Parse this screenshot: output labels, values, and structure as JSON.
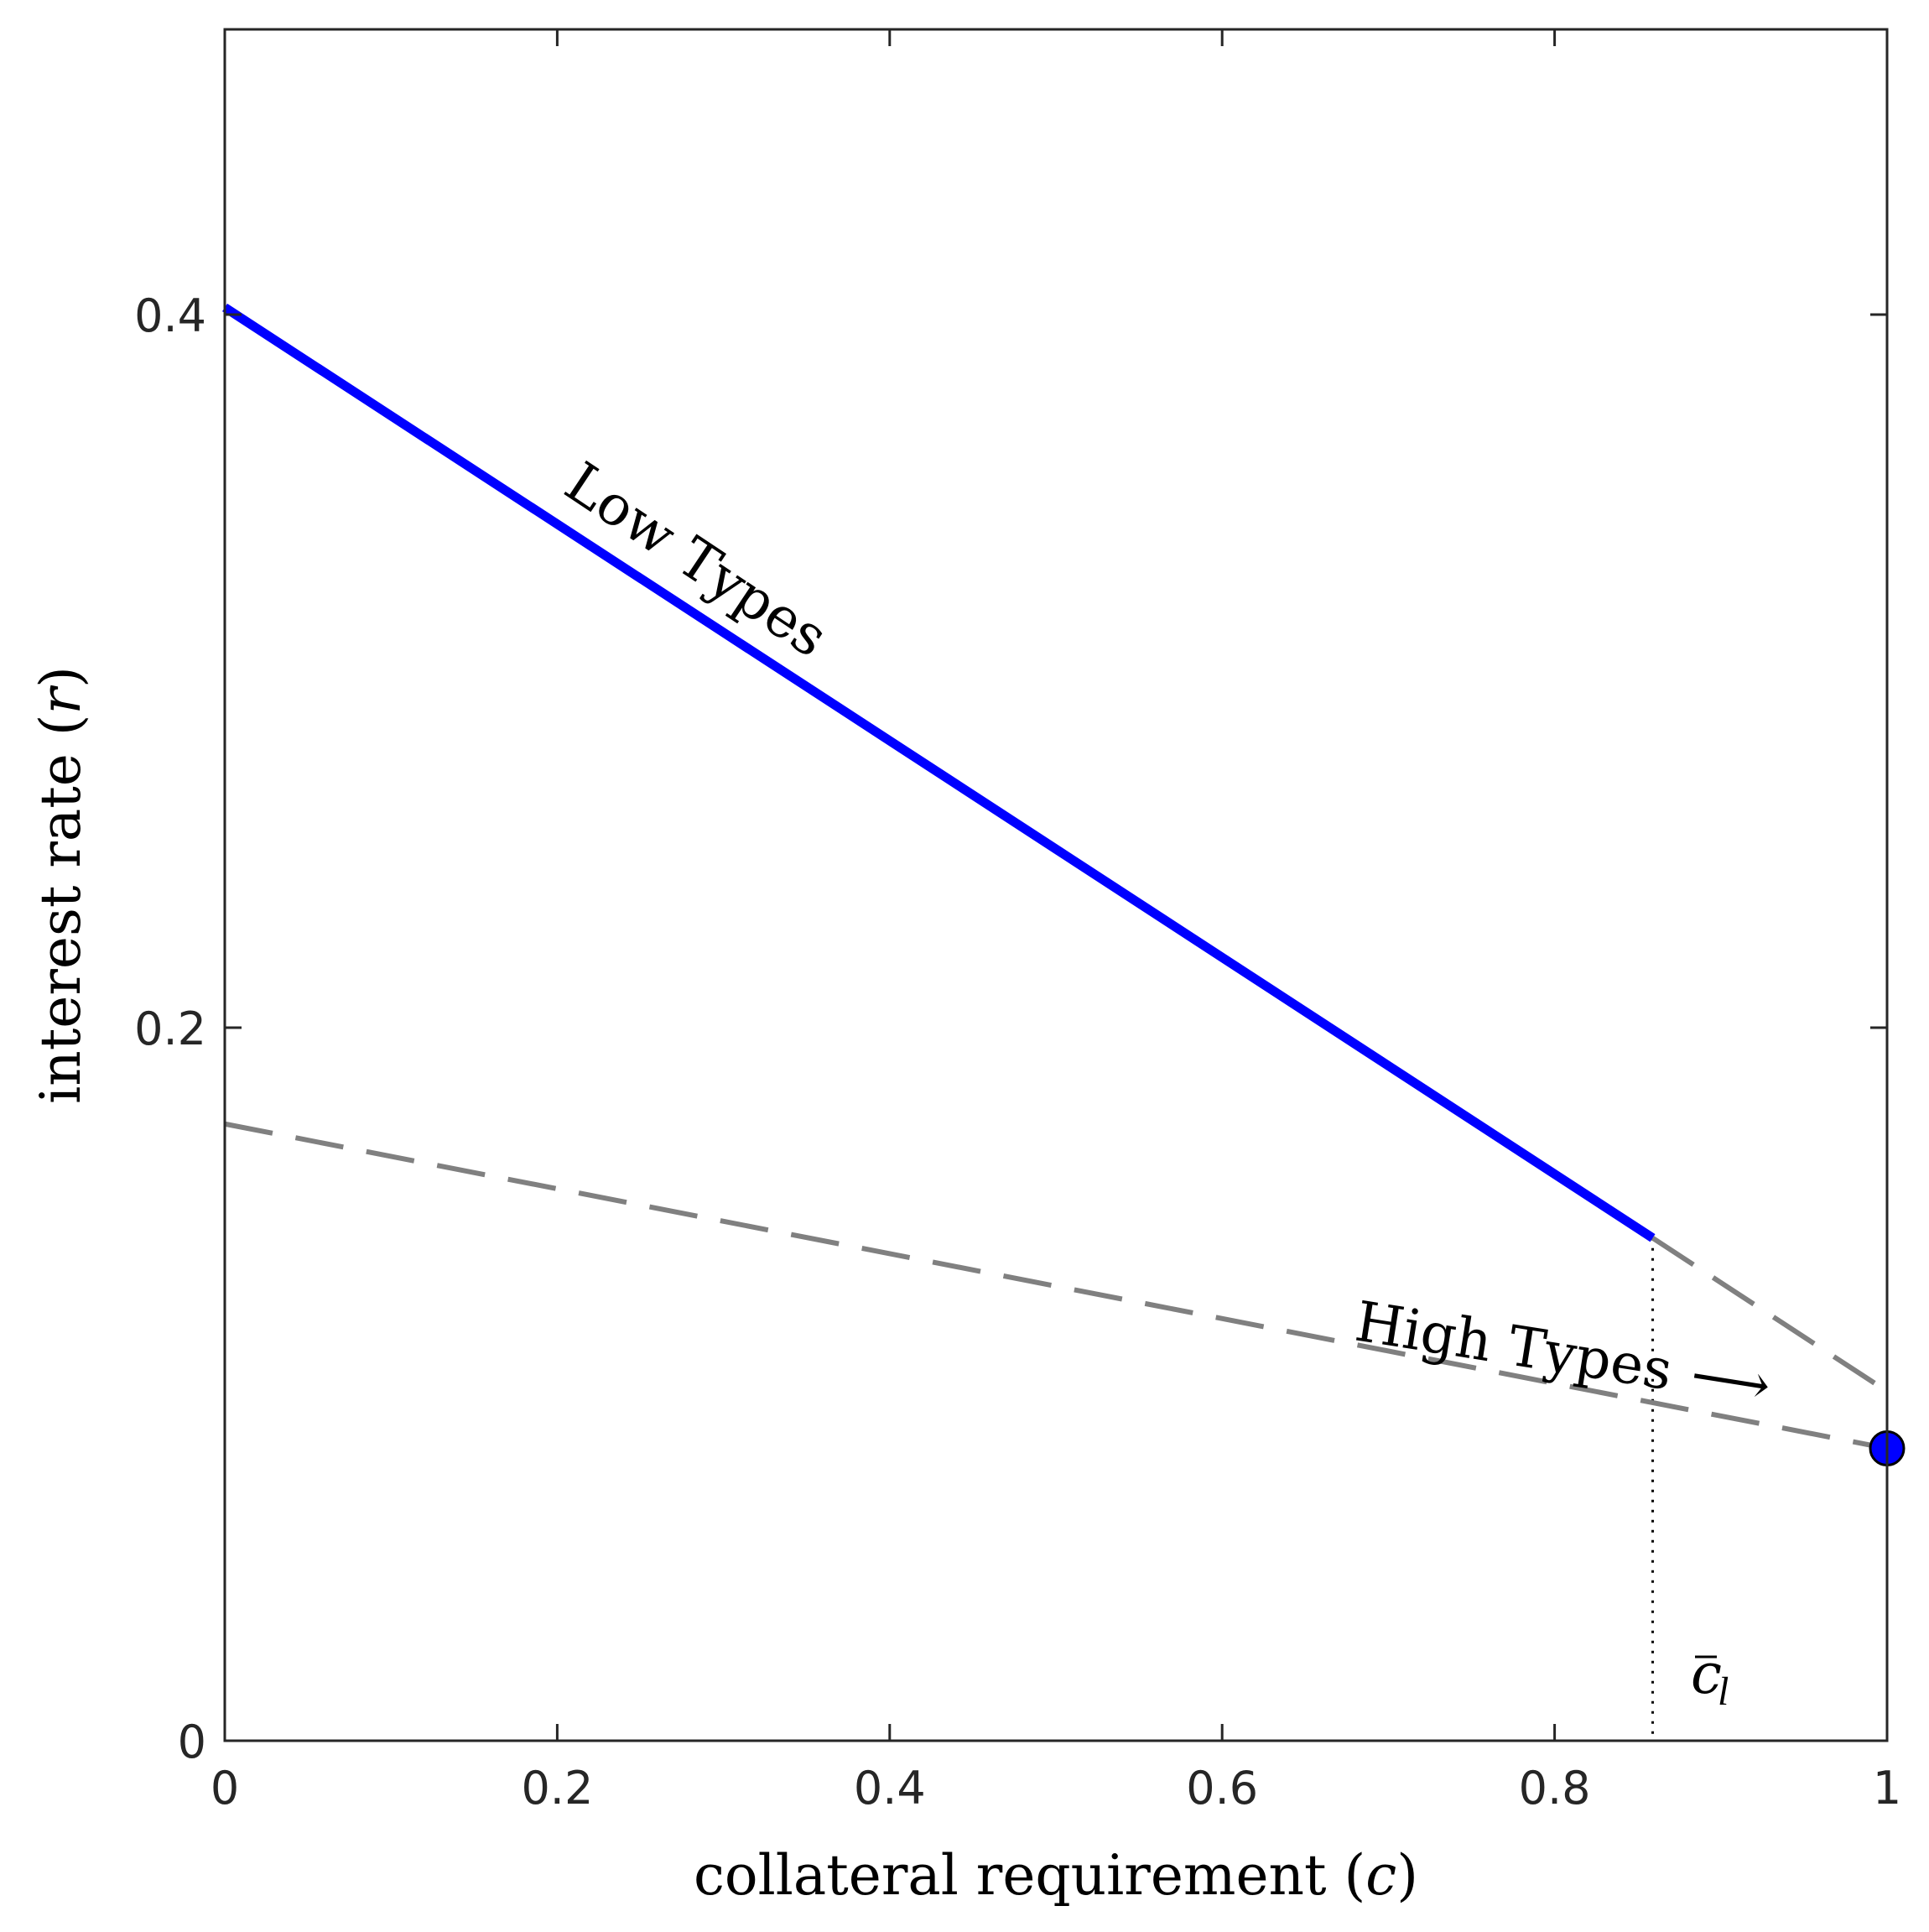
{
  "chart_data": {
    "type": "line",
    "xlabel": "collateral requirement (",
    "xlabel_var": "c",
    "xlabel_close": ")",
    "ylabel": "interest rate (",
    "ylabel_var": "r",
    "ylabel_close": ")",
    "xlim": [
      0,
      1
    ],
    "ylim": [
      0,
      0.48
    ],
    "xticks": [
      0,
      0.2,
      0.4,
      0.6,
      0.8,
      1
    ],
    "xtick_labels": [
      "0",
      "0.2",
      "0.4",
      "0.6",
      "0.8",
      "1"
    ],
    "yticks": [
      0,
      0.2,
      0.4
    ],
    "ytick_labels": [
      "0",
      "0.2",
      "0.4"
    ],
    "grid": false,
    "series": [
      {
        "name": "Low Types",
        "style": "solid",
        "color": "#0000ff",
        "x": [
          0,
          0.859
        ],
        "y": [
          0.402,
          0.141
        ]
      },
      {
        "style": "dashed",
        "color": "#808080",
        "x": [
          0,
          1
        ],
        "y": [
          0.173,
          0.082
        ]
      },
      {
        "style": "dashed",
        "color": "#808080",
        "x": [
          0.859,
          1
        ],
        "y": [
          0.141,
          0.098
        ]
      }
    ],
    "vline": {
      "x": 0.859,
      "style": "dotted",
      "color": "#000000"
    },
    "point": {
      "x": 1,
      "y": 0.082,
      "color": "#0000ff"
    },
    "annotations": {
      "low_types": "Low Types",
      "high_types": "High Types",
      "high_types_arrow": "⟶",
      "cbar_base": "c",
      "cbar_sub": "l"
    }
  }
}
